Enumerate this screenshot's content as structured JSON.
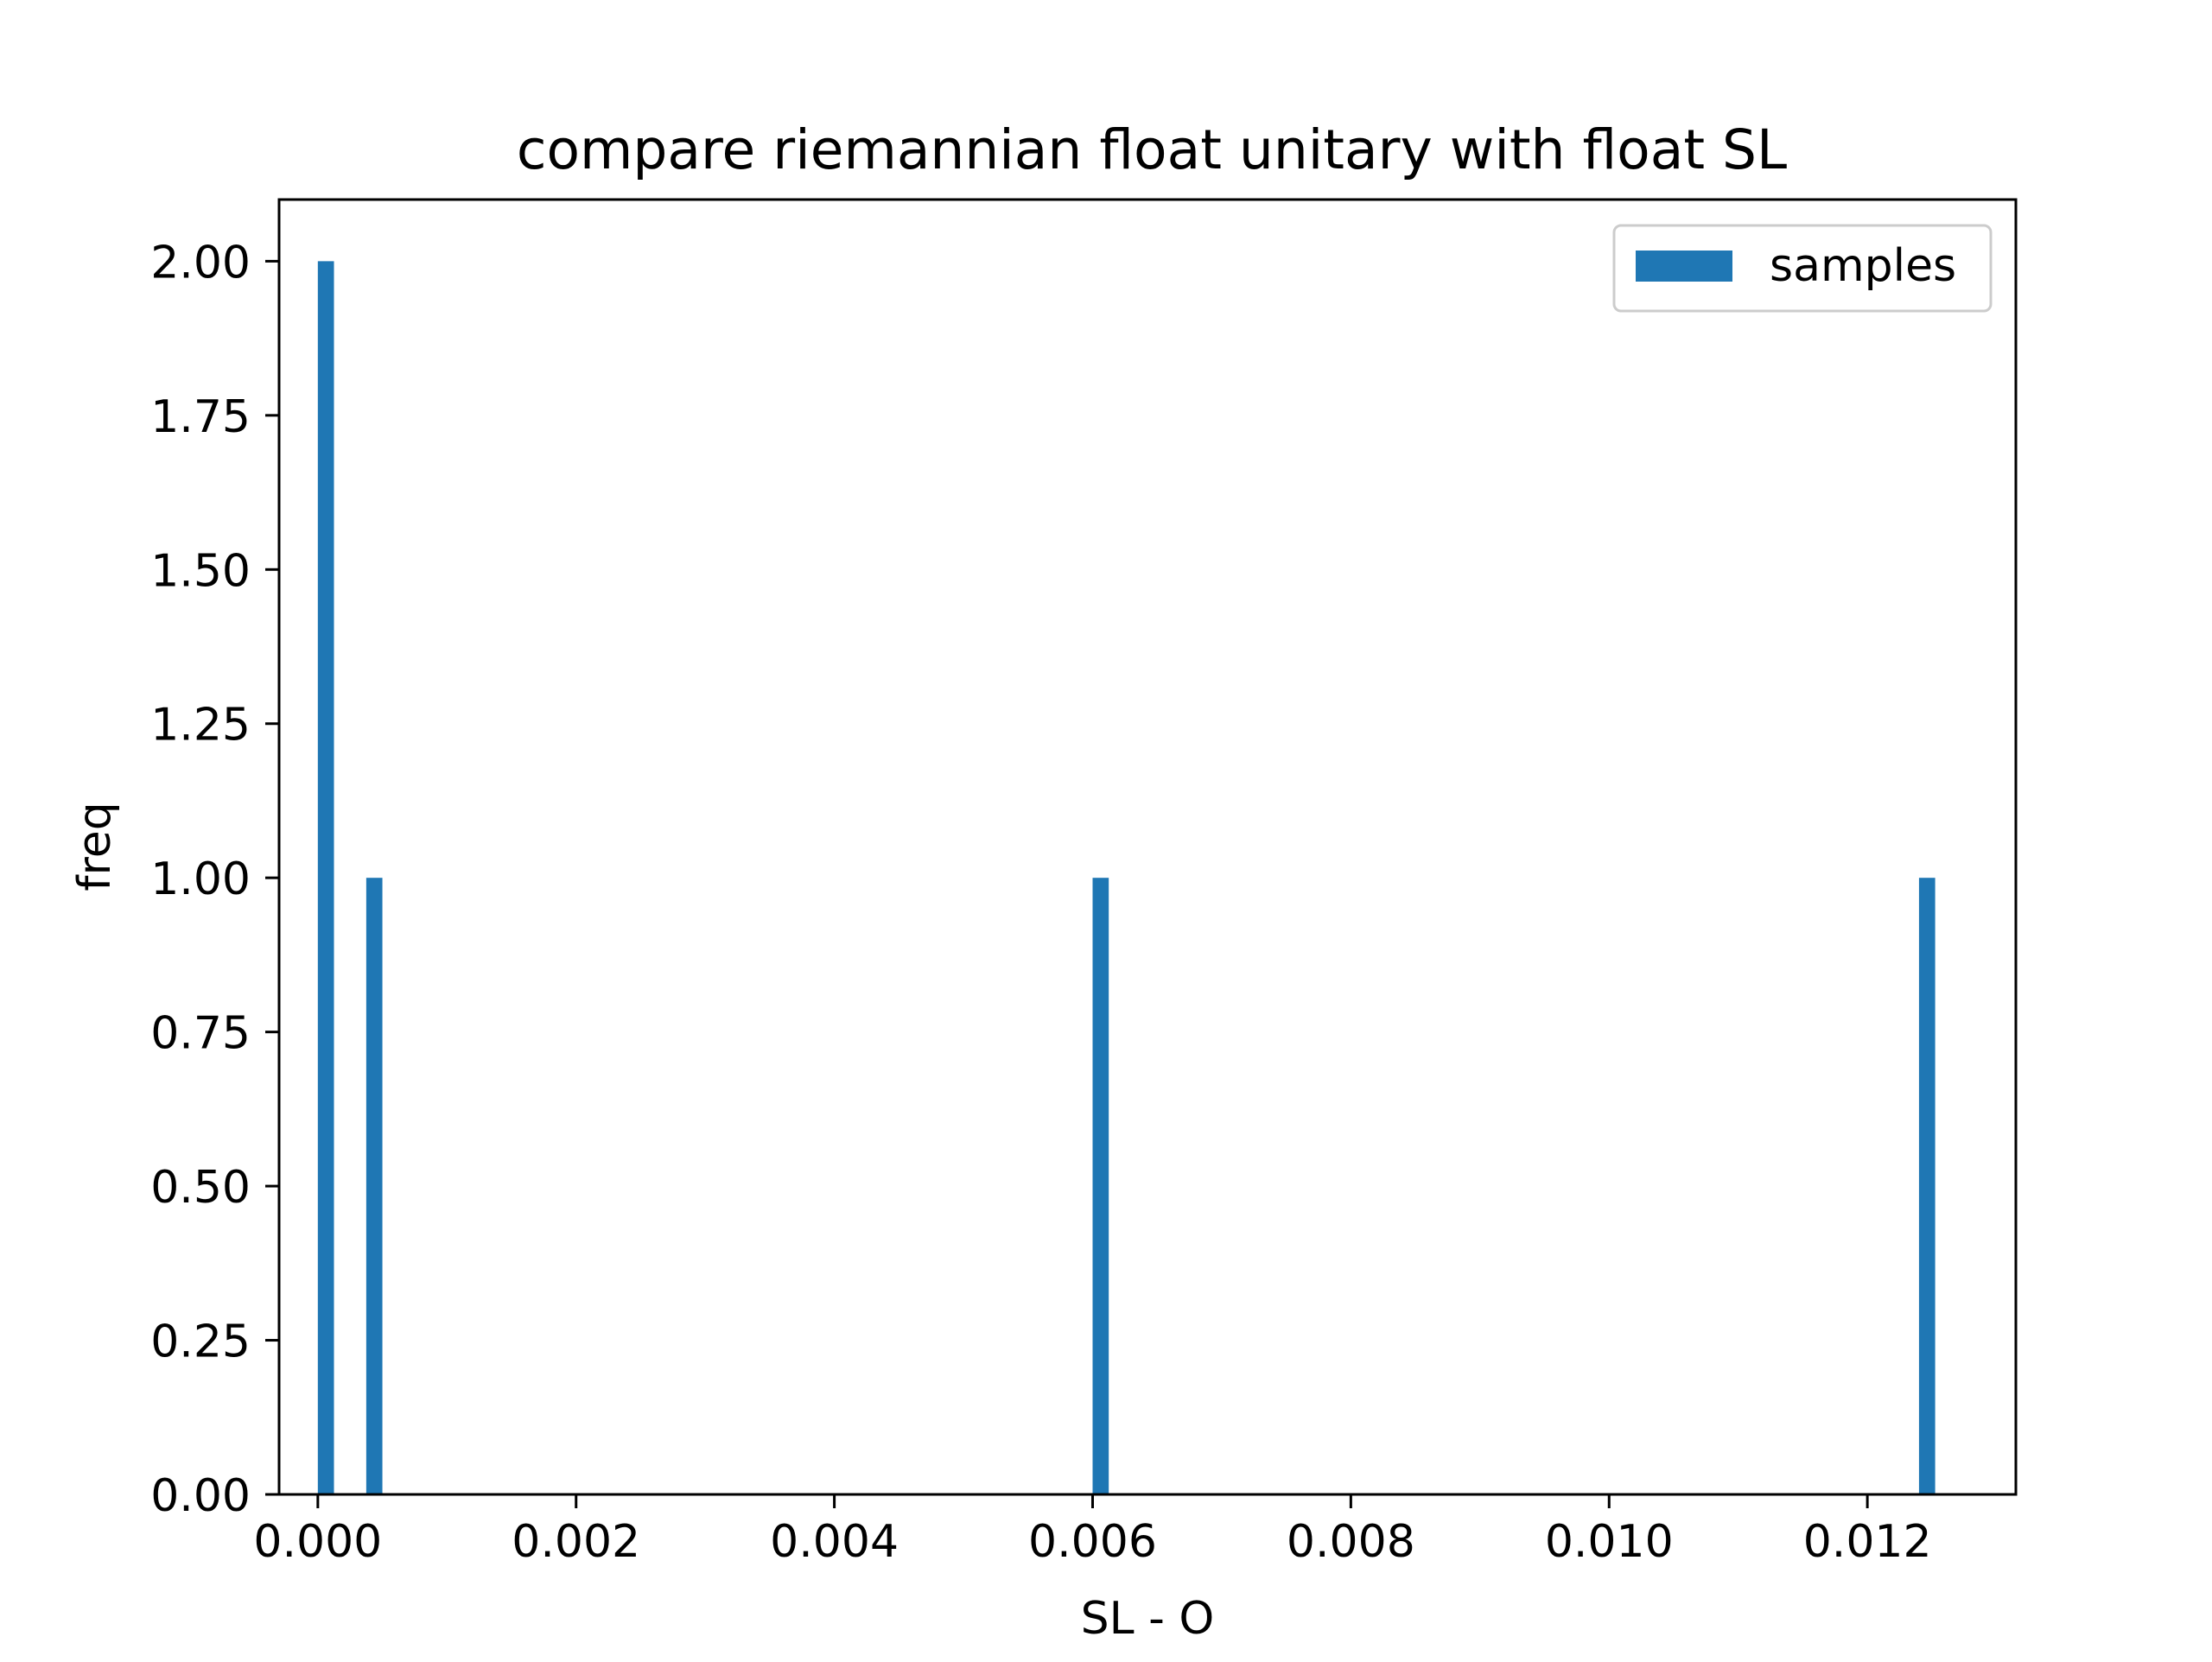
{
  "chart_data": {
    "type": "bar",
    "title": "compare riemannian float unitary with float SL",
    "xlabel": "SL - O",
    "ylabel": "freq",
    "xlim": [
      -0.0003,
      0.01315
    ],
    "ylim": [
      0,
      2.1
    ],
    "x_ticks": [
      0.0,
      0.002,
      0.004,
      0.006,
      0.008,
      0.01,
      0.012
    ],
    "x_tick_labels": [
      "0.000",
      "0.002",
      "0.004",
      "0.006",
      "0.008",
      "0.010",
      "0.012"
    ],
    "y_ticks": [
      0.0,
      0.25,
      0.5,
      0.75,
      1.0,
      1.25,
      1.5,
      1.75,
      2.0
    ],
    "y_tick_labels": [
      "0.00",
      "0.25",
      "0.50",
      "0.75",
      "1.00",
      "1.25",
      "1.50",
      "1.75",
      "2.00"
    ],
    "bin_width": 0.000125,
    "series": [
      {
        "name": "samples",
        "color": "#1f77b4",
        "bins": [
          {
            "x": 0.0,
            "value": 2
          },
          {
            "x": 0.000375,
            "value": 1
          },
          {
            "x": 0.006,
            "value": 1
          },
          {
            "x": 0.0124,
            "value": 1
          }
        ]
      }
    ],
    "legend": {
      "position": "top-right",
      "entries": [
        "samples"
      ]
    },
    "grid": false
  }
}
